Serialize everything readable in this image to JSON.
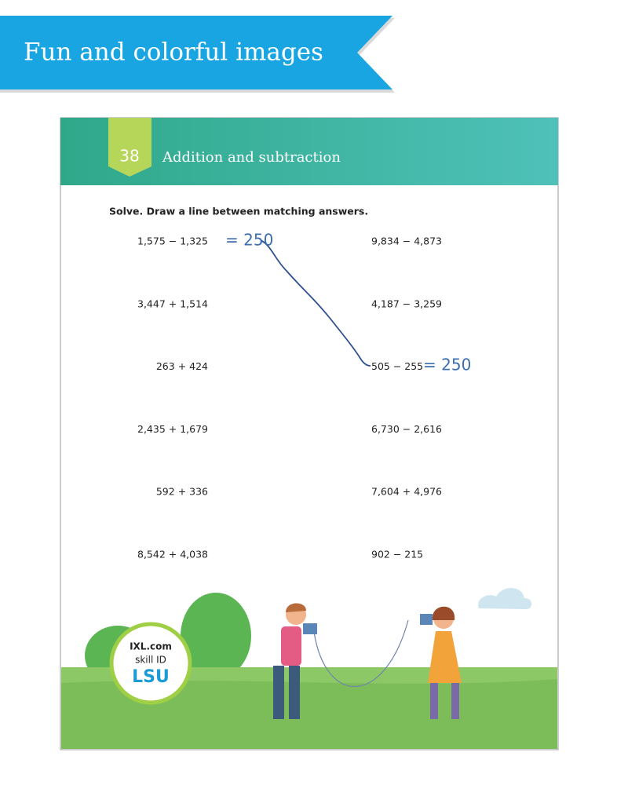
{
  "banner": {
    "title": "Fun and colorful images"
  },
  "page": {
    "number": "38",
    "title": "Addition and subtraction",
    "instructions": "Solve. Draw a line between matching answers.",
    "left_problems": [
      "1,575 − 1,325",
      "3,447 + 1,514",
      "263 + 424",
      "2,435 + 1,679",
      "592 + 336",
      "8,542 + 4,038"
    ],
    "right_problems": [
      "9,834 − 4,873",
      "4,187 − 3,259",
      "505 − 255",
      "6,730 − 2,616",
      "7,604 + 4,976",
      "902 − 215"
    ],
    "answers": [
      "= 250",
      "= 250"
    ]
  },
  "badge": {
    "site": "IXL.com",
    "label": "skill ID",
    "code": "LSU"
  }
}
